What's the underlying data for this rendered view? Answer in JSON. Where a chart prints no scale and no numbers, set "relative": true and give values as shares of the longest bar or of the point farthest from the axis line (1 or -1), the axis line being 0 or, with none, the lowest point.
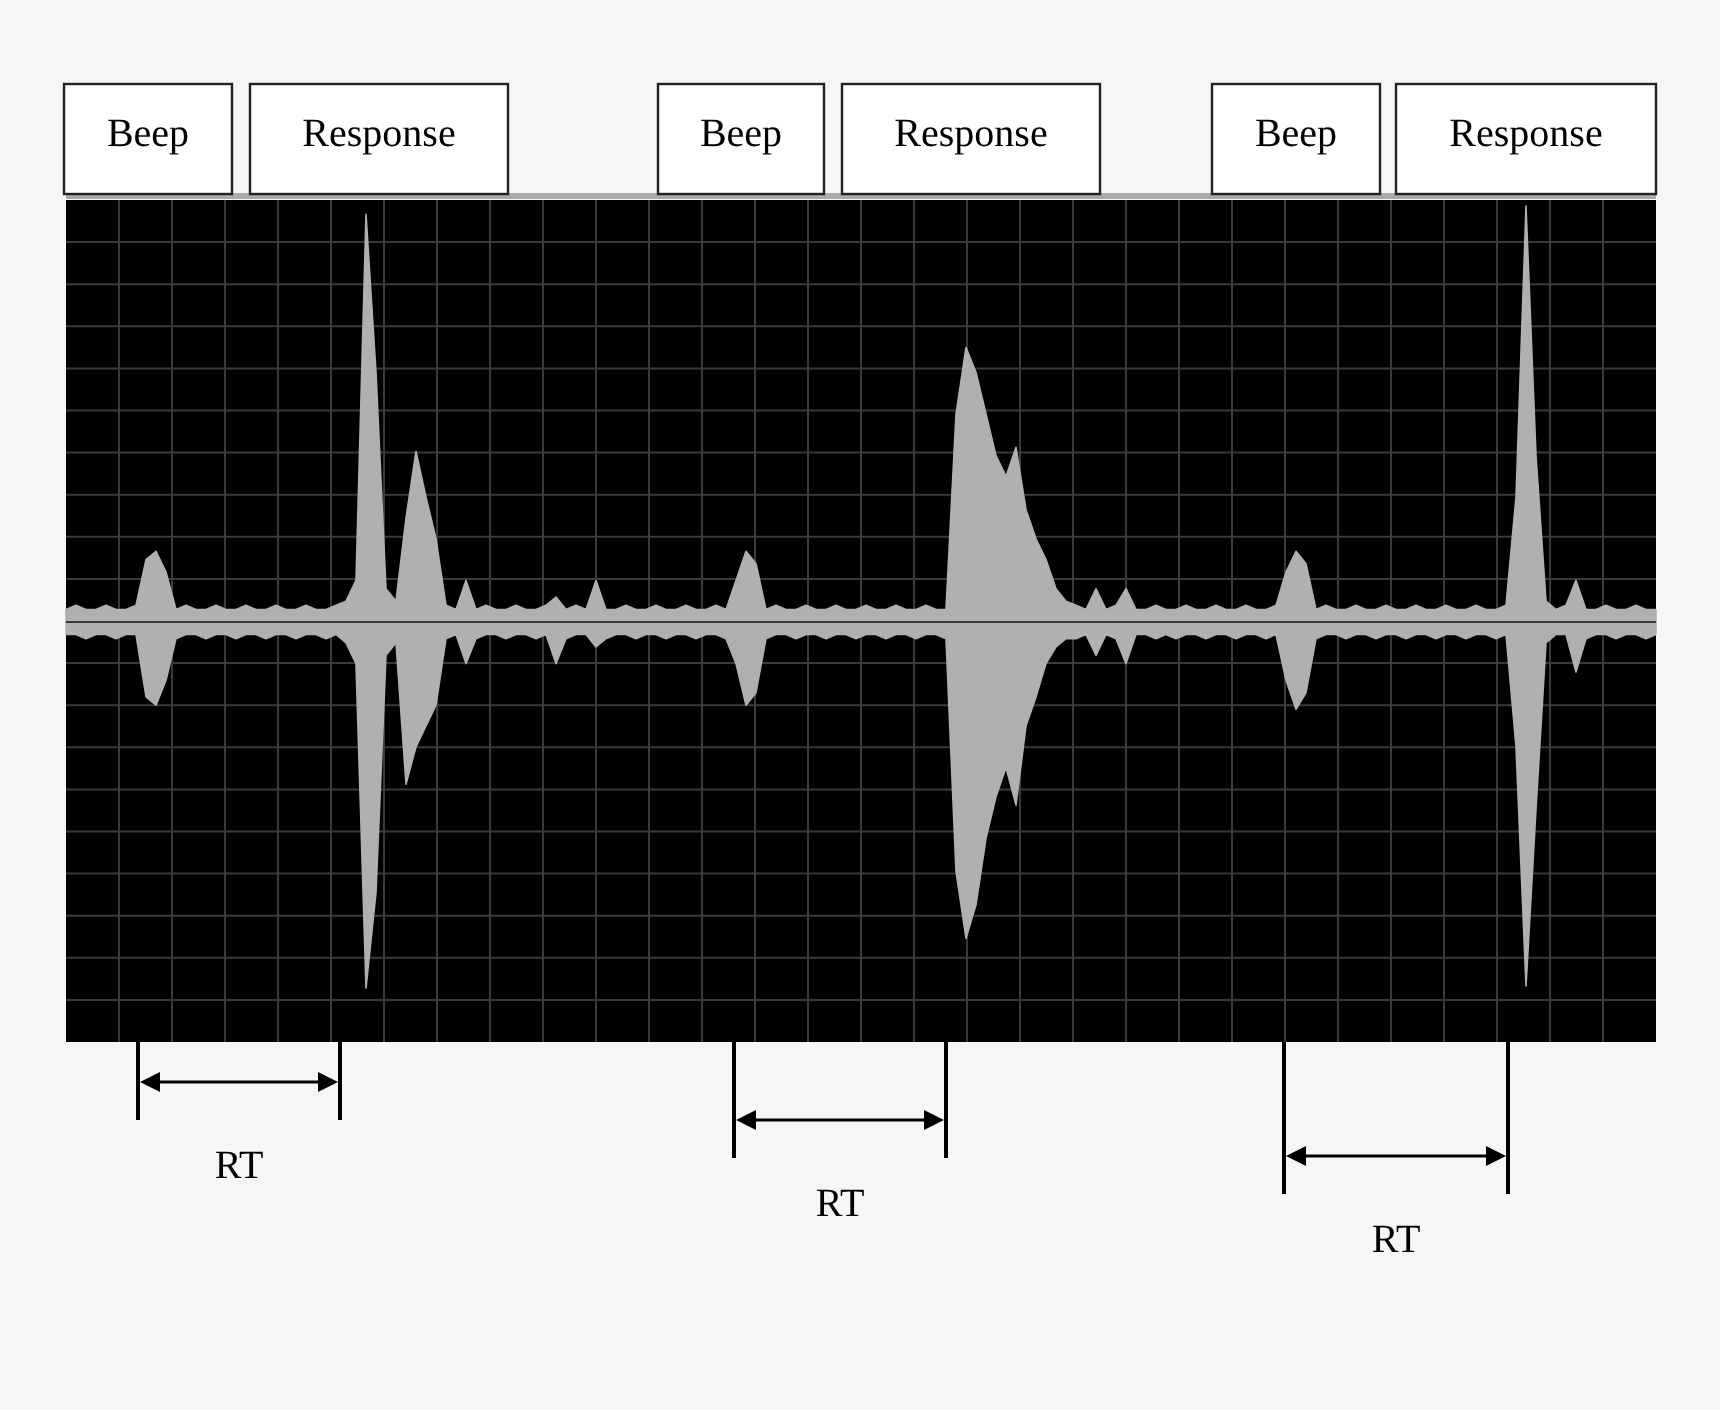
{
  "chart_data": {
    "type": "area",
    "relative": true,
    "grid": true,
    "categories": [
      null,
      null,
      null,
      null,
      null,
      null,
      null,
      null,
      null,
      null,
      null,
      null,
      null,
      null,
      null,
      null,
      null,
      null,
      null,
      null,
      null,
      null,
      null,
      null,
      null,
      null,
      null,
      null,
      null,
      null,
      null,
      null,
      null,
      null,
      null,
      null,
      null,
      null,
      null,
      null,
      null,
      null,
      null,
      null,
      null,
      null,
      null,
      null,
      null,
      null,
      null,
      null,
      null,
      null,
      null,
      null,
      null,
      null,
      null,
      null,
      null,
      null,
      null,
      null,
      null,
      null,
      null,
      null,
      null,
      null,
      null,
      null,
      null,
      null,
      null,
      null,
      null,
      null,
      null,
      null,
      null,
      null,
      null,
      null,
      null,
      null,
      null,
      null,
      null,
      null,
      null,
      null,
      null,
      null,
      null,
      null,
      null,
      null,
      null,
      null,
      null,
      null,
      null,
      null,
      null,
      null,
      null,
      null,
      null,
      null,
      null,
      null,
      null,
      null,
      null,
      null,
      null,
      null,
      null,
      null,
      null,
      null,
      null,
      null,
      null,
      null,
      null,
      null,
      null,
      null,
      null,
      null,
      null,
      null,
      null,
      null,
      null,
      null,
      null,
      null,
      null,
      null,
      null,
      null,
      null,
      null,
      null,
      null,
      null,
      null,
      null,
      null,
      null,
      null,
      null,
      null,
      null,
      null,
      null,
      null
    ],
    "series": [
      {
        "color": "#b0b0b0",
        "values": [
          0.03,
          0.04,
          0.03,
          0.03,
          0.04,
          0.03,
          0.03,
          0.04,
          0.15,
          0.17,
          0.12,
          0.03,
          0.04,
          0.03,
          0.03,
          0.04,
          0.03,
          0.03,
          0.04,
          0.03,
          0.03,
          0.04,
          0.03,
          0.03,
          0.04,
          0.03,
          0.03,
          0.04,
          0.05,
          0.1,
          0.98,
          0.6,
          0.08,
          0.05,
          0.25,
          0.41,
          0.3,
          0.2,
          0.04,
          0.03,
          0.1,
          0.03,
          0.04,
          0.03,
          0.03,
          0.04,
          0.03,
          0.03,
          0.04,
          0.06,
          0.03,
          0.04,
          0.03,
          0.1,
          0.03,
          0.03,
          0.04,
          0.03,
          0.03,
          0.04,
          0.03,
          0.03,
          0.04,
          0.03,
          0.03,
          0.04,
          0.03,
          0.1,
          0.17,
          0.14,
          0.03,
          0.04,
          0.03,
          0.03,
          0.04,
          0.03,
          0.03,
          0.04,
          0.03,
          0.03,
          0.04,
          0.03,
          0.03,
          0.04,
          0.03,
          0.03,
          0.04,
          0.03,
          0.03,
          0.5,
          0.66,
          0.6,
          0.5,
          0.4,
          0.35,
          0.42,
          0.27,
          0.2,
          0.15,
          0.08,
          0.05,
          0.04,
          0.03,
          0.08,
          0.03,
          0.04,
          0.08,
          0.03,
          0.03,
          0.04,
          0.03,
          0.03,
          0.04,
          0.03,
          0.03,
          0.04,
          0.03,
          0.03,
          0.04,
          0.03,
          0.03,
          0.04,
          0.12,
          0.17,
          0.14,
          0.03,
          0.04,
          0.03,
          0.03,
          0.04,
          0.03,
          0.03,
          0.04,
          0.03,
          0.03,
          0.04,
          0.03,
          0.03,
          0.04,
          0.03,
          0.03,
          0.04,
          0.03,
          0.03,
          0.04,
          0.3,
          1,
          0.4,
          0.05,
          0.03,
          0.04,
          0.1,
          0.03,
          0.03,
          0.04,
          0.03,
          0.03,
          0.04,
          0.03,
          0.03
        ]
      },
      {
        "color": "#b0b0b0",
        "values": [
          -0.03,
          -0.03,
          -0.04,
          -0.03,
          -0.03,
          -0.04,
          -0.03,
          -0.03,
          -0.18,
          -0.2,
          -0.14,
          -0.04,
          -0.03,
          -0.03,
          -0.04,
          -0.03,
          -0.03,
          -0.04,
          -0.03,
          -0.03,
          -0.04,
          -0.03,
          -0.03,
          -0.04,
          -0.03,
          -0.03,
          -0.04,
          -0.03,
          -0.05,
          -0.1,
          -0.88,
          -0.65,
          -0.08,
          -0.05,
          -0.39,
          -0.3,
          -0.25,
          -0.2,
          -0.04,
          -0.03,
          -0.1,
          -0.04,
          -0.03,
          -0.03,
          -0.04,
          -0.03,
          -0.03,
          -0.04,
          -0.03,
          -0.1,
          -0.04,
          -0.03,
          -0.03,
          -0.06,
          -0.04,
          -0.03,
          -0.03,
          -0.04,
          -0.03,
          -0.03,
          -0.04,
          -0.03,
          -0.03,
          -0.04,
          -0.03,
          -0.03,
          -0.04,
          -0.1,
          -0.2,
          -0.17,
          -0.04,
          -0.03,
          -0.03,
          -0.04,
          -0.03,
          -0.03,
          -0.04,
          -0.03,
          -0.03,
          -0.04,
          -0.03,
          -0.03,
          -0.04,
          -0.03,
          -0.03,
          -0.04,
          -0.03,
          -0.03,
          -0.04,
          -0.6,
          -0.76,
          -0.68,
          -0.52,
          -0.42,
          -0.35,
          -0.44,
          -0.25,
          -0.18,
          -0.1,
          -0.06,
          -0.04,
          -0.04,
          -0.03,
          -0.08,
          -0.03,
          -0.04,
          -0.1,
          -0.03,
          -0.03,
          -0.04,
          -0.03,
          -0.04,
          -0.03,
          -0.03,
          -0.04,
          -0.03,
          -0.03,
          -0.04,
          -0.03,
          -0.03,
          -0.04,
          -0.03,
          -0.14,
          -0.21,
          -0.17,
          -0.04,
          -0.03,
          -0.03,
          -0.04,
          -0.03,
          -0.03,
          -0.04,
          -0.03,
          -0.03,
          -0.04,
          -0.03,
          -0.03,
          -0.04,
          -0.03,
          -0.03,
          -0.04,
          -0.03,
          -0.03,
          -0.04,
          -0.03,
          -0.3,
          -0.875,
          -0.45,
          -0.05,
          -0.03,
          -0.03,
          -0.12,
          -0.04,
          -0.03,
          -0.03,
          -0.04,
          -0.03,
          -0.03,
          -0.04,
          -0.03
        ]
      }
    ],
    "annotations": [
      "Beep",
      "Response",
      "Beep",
      "Response",
      "Beep",
      "Response",
      "RT",
      "RT",
      "RT"
    ]
  }
}
